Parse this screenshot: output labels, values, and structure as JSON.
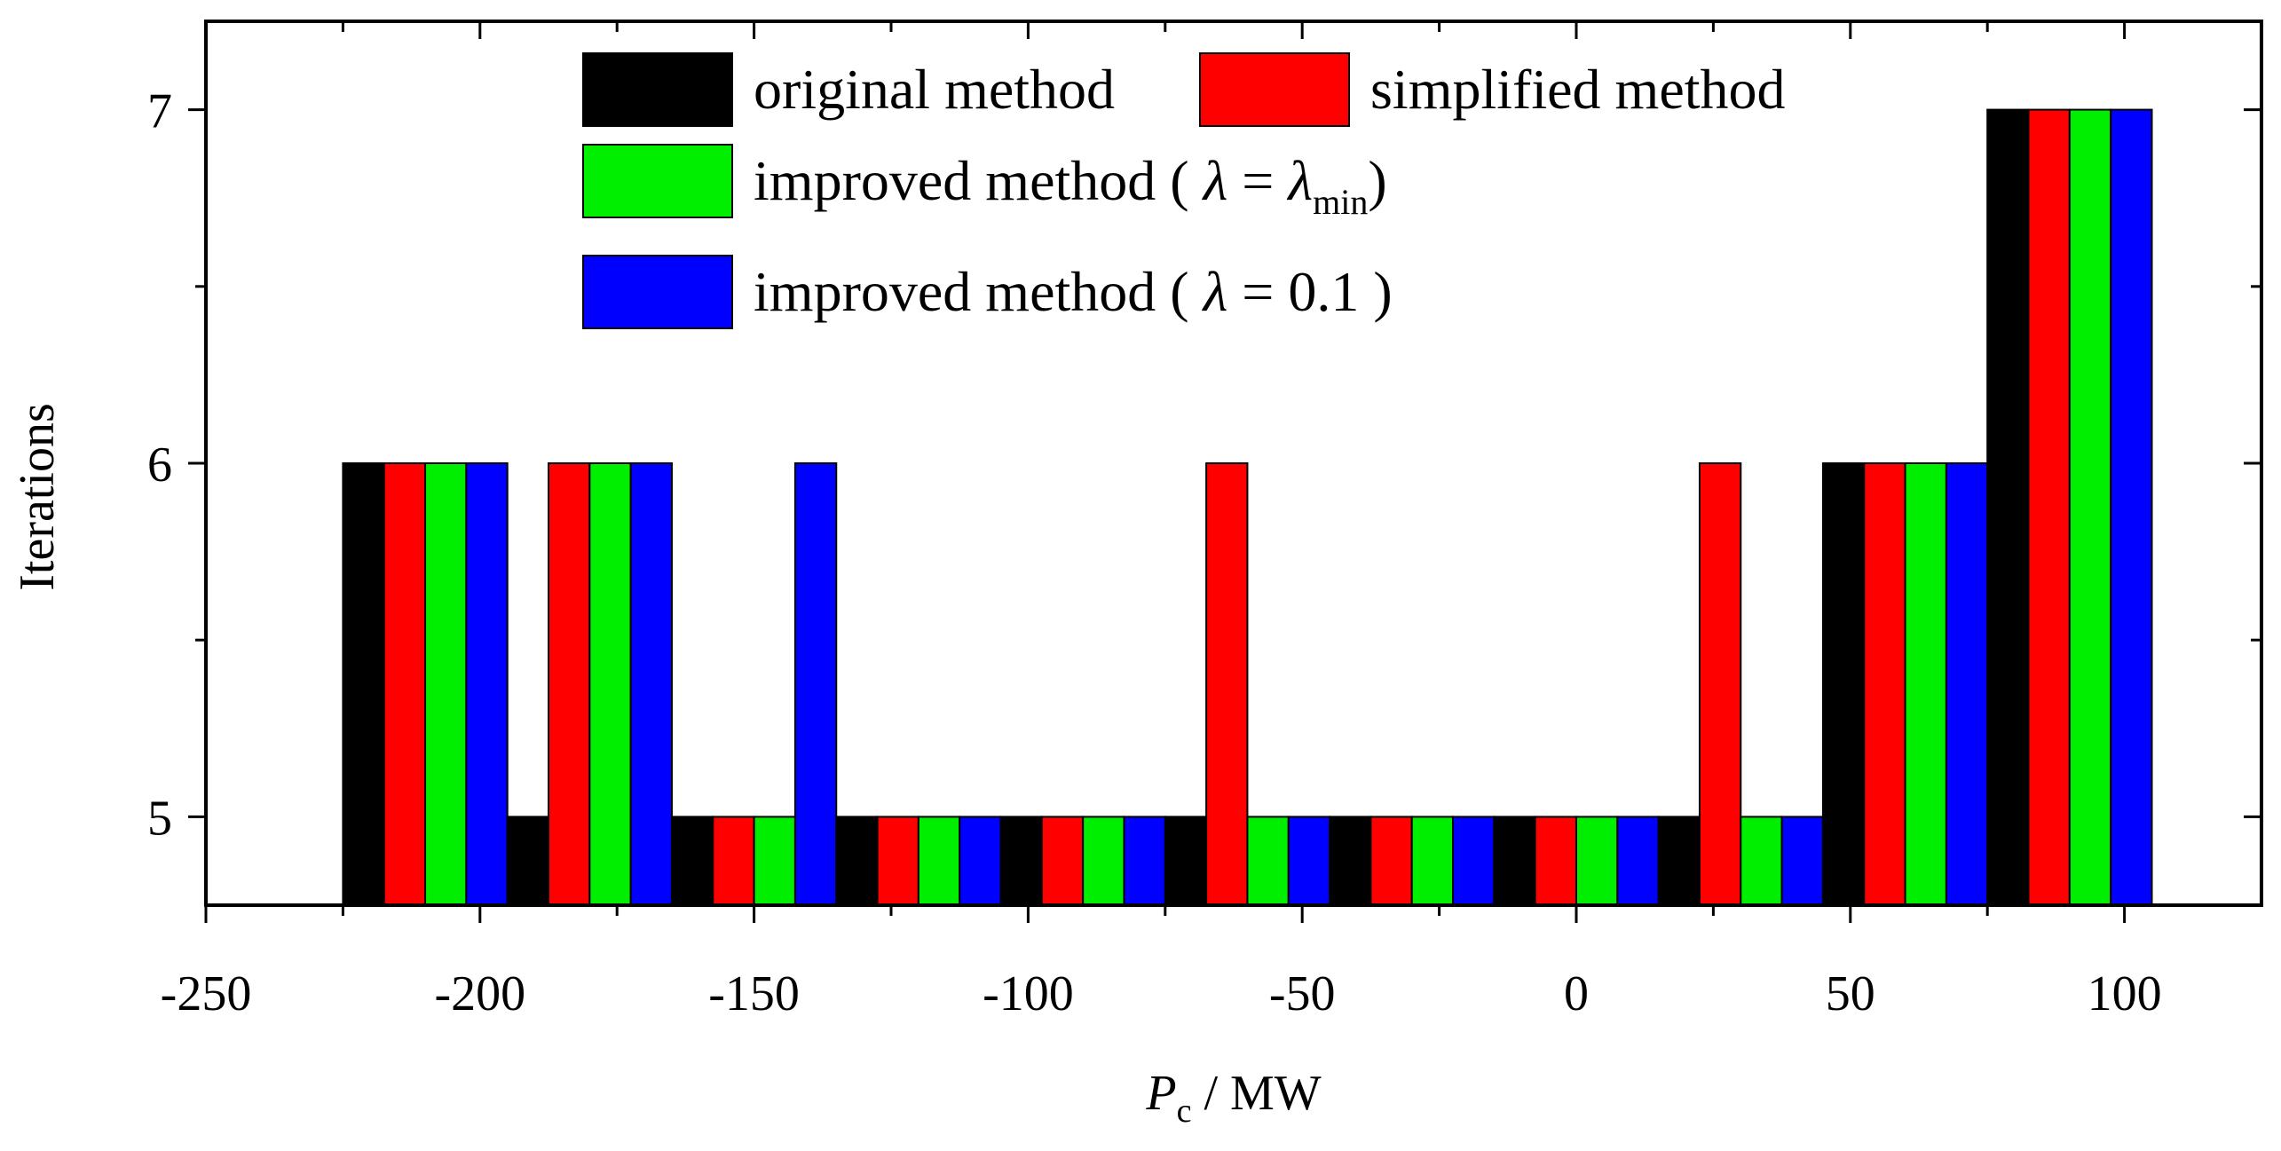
{
  "chart_data": {
    "type": "bar",
    "title": "",
    "xlabel_main": "P",
    "xlabel_sub": "c",
    "xlabel_unit": " / MW",
    "ylabel": "Iterations",
    "xlim": [
      -250,
      125
    ],
    "ylim": [
      4.75,
      7.25
    ],
    "xticks": [
      -250,
      -200,
      -150,
      -100,
      -50,
      0,
      50,
      100
    ],
    "xtick_labels": [
      "-250",
      "-200",
      "-150",
      "-100",
      "-50",
      "0",
      "50",
      "100"
    ],
    "yticks": [
      5,
      6,
      7
    ],
    "ytick_labels": [
      "5",
      "6",
      "7"
    ],
    "categories": [
      -210,
      -180,
      -150,
      -120,
      -90,
      -60,
      -30,
      0,
      30,
      60,
      90
    ],
    "series": [
      {
        "name": "original method",
        "color": "#000000",
        "values": [
          6,
          5,
          5,
          5,
          5,
          5,
          5,
          5,
          5,
          6,
          7
        ]
      },
      {
        "name": "simplified method",
        "color": "#ff0000",
        "values": [
          6,
          6,
          5,
          5,
          5,
          6,
          5,
          5,
          6,
          6,
          7
        ]
      },
      {
        "name": "improved method (λ = λmin)",
        "color": "#00ee00",
        "values": [
          6,
          6,
          5,
          5,
          5,
          5,
          5,
          5,
          5,
          6,
          7
        ]
      },
      {
        "name": "improved method (λ = 0.1)",
        "color": "#0000ff",
        "values": [
          6,
          6,
          6,
          5,
          5,
          5,
          5,
          5,
          5,
          6,
          7
        ]
      }
    ],
    "legend": {
      "position": "top-center",
      "entries": [
        {
          "prefix": "original method",
          "lambda": "",
          "eq": "",
          "value": "",
          "sub": "",
          "suffix": ""
        },
        {
          "prefix": "simplified method",
          "lambda": "",
          "eq": "",
          "value": "",
          "sub": "",
          "suffix": ""
        },
        {
          "prefix": "improved method ( ",
          "lambda": "λ",
          "eq": " = ",
          "value": "λ",
          "sub": "min",
          "suffix": ")"
        },
        {
          "prefix": "improved method ( ",
          "lambda": "λ",
          "eq": " = ",
          "value": "0.1",
          "sub": "",
          "suffix": " )"
        }
      ]
    }
  }
}
